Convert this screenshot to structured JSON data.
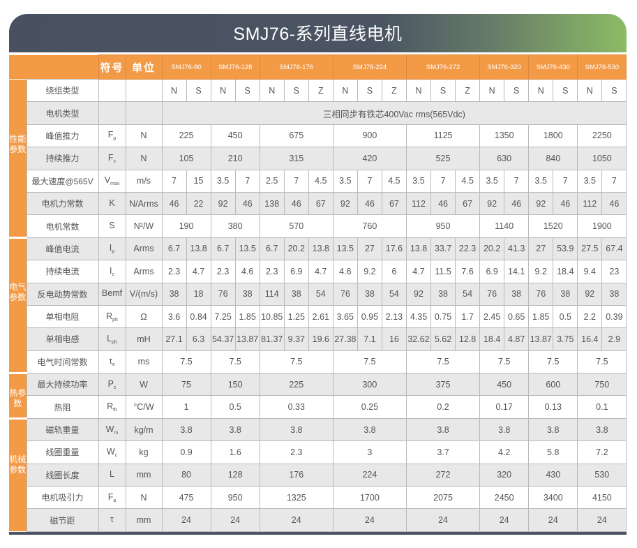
{
  "title": "SMJ76-系列直线电机",
  "header": {
    "symbol": "符号",
    "unit": "单位",
    "models": [
      {
        "name": "SMJ76-80",
        "span": 2
      },
      {
        "name": "SMJ76-128",
        "span": 2
      },
      {
        "name": "SMJ76-176",
        "span": 3
      },
      {
        "name": "SMJ76-224",
        "span": 3
      },
      {
        "name": "SMJ76-272",
        "span": 3
      },
      {
        "name": "SMJ76-320",
        "span": 2
      },
      {
        "name": "SMJ76-430",
        "span": 2
      },
      {
        "name": "SMJ76-530",
        "span": 2
      }
    ]
  },
  "sections": [
    {
      "label": "性能参数",
      "rows": [
        {
          "name": "绕组类型",
          "sym": "",
          "sub": "",
          "unit": "",
          "per": "col",
          "values": [
            "N",
            "S",
            "N",
            "S",
            "N",
            "S",
            "Z",
            "N",
            "S",
            "Z",
            "N",
            "S",
            "Z",
            "N",
            "S",
            "N",
            "S",
            "N",
            "S"
          ]
        },
        {
          "name": "电机类型",
          "sym": "",
          "sub": "",
          "unit": "",
          "per": "all",
          "values": [
            "三相同步有铁芯400Vac rms(565Vdc)"
          ]
        },
        {
          "name": "峰值推力",
          "sym": "F",
          "sub": "p",
          "unit": "N",
          "per": "group",
          "values": [
            "225",
            "450",
            "675",
            "900",
            "1125",
            "1350",
            "1800",
            "2250"
          ]
        },
        {
          "name": "持续推力",
          "sym": "F",
          "sub": "c",
          "unit": "N",
          "per": "group",
          "values": [
            "105",
            "210",
            "315",
            "420",
            "525",
            "630",
            "840",
            "1050"
          ]
        },
        {
          "name": "最大速度@565V",
          "sym": "V",
          "sub": "max",
          "unit": "m/s",
          "per": "col",
          "values": [
            "7",
            "15",
            "3.5",
            "7",
            "2.5",
            "7",
            "4.5",
            "3.5",
            "7",
            "4.5",
            "3.5",
            "7",
            "4.5",
            "3.5",
            "7",
            "3.5",
            "7",
            "3.5",
            "7"
          ]
        },
        {
          "name": "电机力常数",
          "sym": "K",
          "sub": "",
          "unit": "N/Arms",
          "per": "col",
          "values": [
            "46",
            "22",
            "92",
            "46",
            "138",
            "46",
            "67",
            "92",
            "46",
            "67",
            "112",
            "46",
            "67",
            "92",
            "46",
            "92",
            "46",
            "112",
            "46"
          ]
        },
        {
          "name": "电机常数",
          "sym": "S",
          "sub": "",
          "unit": "N²/W",
          "per": "group",
          "values": [
            "190",
            "380",
            "570",
            "760",
            "950",
            "1140",
            "1520",
            "1900"
          ]
        }
      ]
    },
    {
      "label": "电气参数",
      "rows": [
        {
          "name": "峰值电流",
          "sym": "I",
          "sub": "p",
          "unit": "Arms",
          "per": "col",
          "values": [
            "6.7",
            "13.8",
            "6.7",
            "13.5",
            "6.7",
            "20.2",
            "13.8",
            "13.5",
            "27",
            "17.6",
            "13.8",
            "33.7",
            "22.3",
            "20.2",
            "41.3",
            "27",
            "53.9",
            "27.5",
            "67.4"
          ]
        },
        {
          "name": "持续电流",
          "sym": "I",
          "sub": "c",
          "unit": "Arms",
          "per": "col",
          "values": [
            "2.3",
            "4.7",
            "2.3",
            "4.6",
            "2.3",
            "6.9",
            "4.7",
            "4.6",
            "9.2",
            "6",
            "4.7",
            "11.5",
            "7.6",
            "6.9",
            "14.1",
            "9.2",
            "18.4",
            "9.4",
            "23"
          ]
        },
        {
          "name": "反电动势常数",
          "sym": "Bemf",
          "sub": "",
          "unit": "V/(m/s)",
          "per": "col",
          "values": [
            "38",
            "18",
            "76",
            "38",
            "114",
            "38",
            "54",
            "76",
            "38",
            "54",
            "92",
            "38",
            "54",
            "76",
            "38",
            "76",
            "38",
            "92",
            "38"
          ]
        },
        {
          "name": "单相电阻",
          "sym": "R",
          "sub": "ph",
          "unit": "Ω",
          "per": "col",
          "values": [
            "3.6",
            "0.84",
            "7.25",
            "1.85",
            "10.85",
            "1.25",
            "2.61",
            "3.65",
            "0.95",
            "2.13",
            "4.35",
            "0.75",
            "1.7",
            "2.45",
            "0.65",
            "1.85",
            "0.5",
            "2.2",
            "0.39"
          ]
        },
        {
          "name": "单相电感",
          "sym": "L",
          "sub": "ph",
          "unit": "mH",
          "per": "col",
          "values": [
            "27.1",
            "6.3",
            "54.37",
            "13.87",
            "81.37",
            "9.37",
            "19.6",
            "27.38",
            "7.1",
            "16",
            "32.62",
            "5.62",
            "12.8",
            "18.4",
            "4.87",
            "13.87",
            "3.75",
            "16.4",
            "2.9"
          ]
        },
        {
          "name": "电气时间常数",
          "sym": "τ",
          "sub": "e",
          "unit": "ms",
          "per": "group",
          "values": [
            "7.5",
            "7.5",
            "7.5",
            "7.5",
            "7.5",
            "7.5",
            "7.5",
            "7.5"
          ]
        }
      ]
    },
    {
      "label": "热参数",
      "rows": [
        {
          "name": "最大持续功率",
          "sym": "P",
          "sub": "c",
          "unit": "W",
          "per": "group",
          "values": [
            "75",
            "150",
            "225",
            "300",
            "375",
            "450",
            "600",
            "750"
          ]
        },
        {
          "name": "热阻",
          "sym": "R",
          "sub": "th",
          "unit": "°C/W",
          "per": "group",
          "values": [
            "1",
            "0.5",
            "0.33",
            "0.25",
            "0.2",
            "0.17",
            "0.13",
            "0.1"
          ]
        }
      ]
    },
    {
      "label": "机械参数",
      "rows": [
        {
          "name": "磁轨重量",
          "sym": "W",
          "sub": "m",
          "unit": "kg/m",
          "per": "group",
          "values": [
            "3.8",
            "3.8",
            "3.8",
            "3.8",
            "3.8",
            "3.8",
            "3.8",
            "3.8"
          ]
        },
        {
          "name": "线圈重量",
          "sym": "W",
          "sub": "c",
          "unit": "kg",
          "per": "group",
          "values": [
            "0.9",
            "1.6",
            "2.3",
            "3",
            "3.7",
            "4.2",
            "5.8",
            "7.2"
          ]
        },
        {
          "name": "线圈长度",
          "sym": "L",
          "sub": "",
          "unit": "mm",
          "per": "group",
          "values": [
            "80",
            "128",
            "176",
            "224",
            "272",
            "320",
            "430",
            "530"
          ]
        },
        {
          "name": "电机吸引力",
          "sym": "F",
          "sub": "a",
          "unit": "N",
          "per": "group",
          "values": [
            "475",
            "950",
            "1325",
            "1700",
            "2075",
            "2450",
            "3400",
            "4150"
          ]
        },
        {
          "name": "磁节距",
          "sym": "τ",
          "sub": "",
          "unit": "mm",
          "per": "group",
          "values": [
            "24",
            "24",
            "24",
            "24",
            "24",
            "24",
            "24",
            "24"
          ]
        }
      ]
    }
  ]
}
